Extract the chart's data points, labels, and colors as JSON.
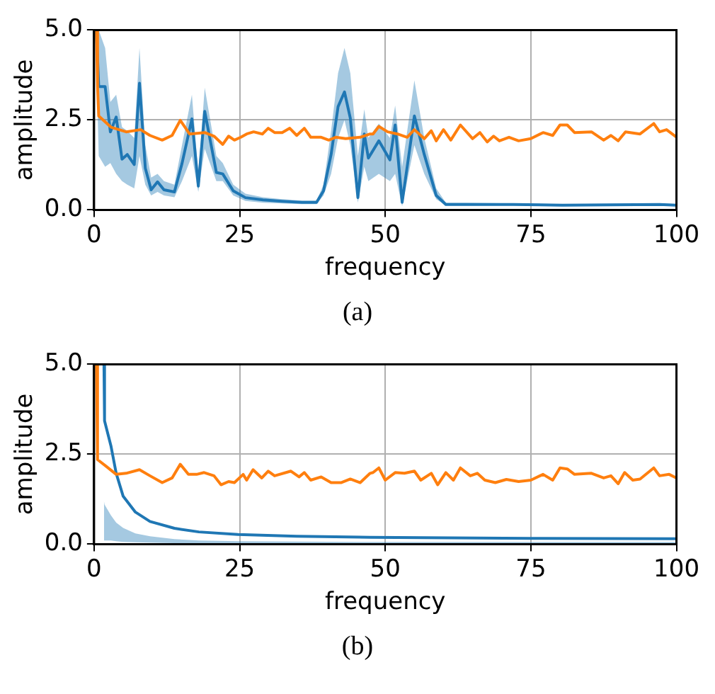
{
  "chart_data": [
    {
      "type": "line",
      "xlabel": "frequency",
      "ylabel": "amplitude",
      "annotations": [
        "(a)"
      ],
      "xlim": [
        0,
        100
      ],
      "ylim": [
        0,
        5
      ],
      "xticks": [
        0,
        25,
        50,
        75,
        100
      ],
      "yticks": [
        {
          "value": 0,
          "label": "0.0"
        },
        {
          "value": 2.5,
          "label": "2.5"
        },
        {
          "value": 5,
          "label": "5.0"
        }
      ],
      "grid": true,
      "legend": false,
      "marker": "none",
      "line_style": "solid",
      "series": [
        {
          "color": "#1f77b4",
          "x": [
            0.4,
            0.8,
            1.9,
            2.8,
            3.8,
            4.8,
            5.7,
            6.9,
            7.8,
            8.8,
            9.8,
            10.9,
            12,
            13.8,
            15.1,
            16.8,
            17.9,
            19,
            21,
            22.1,
            23.9,
            26,
            29,
            32.3,
            35.7,
            38.2,
            39.4,
            40.7,
            41.9,
            43,
            44,
            45.3,
            46.4,
            47.1,
            48.9,
            50.8,
            51.7,
            52.9,
            55,
            56.7,
            58.75,
            60.4,
            63.75,
            72,
            80.4,
            88.75,
            97.1,
            100
          ],
          "values": [
            5.0,
            3.43,
            3.43,
            2.17,
            2.58,
            1.41,
            1.54,
            1.26,
            3.52,
            1.16,
            0.56,
            0.78,
            0.56,
            0.5,
            1.29,
            2.53,
            0.66,
            2.74,
            1.04,
            1.0,
            0.53,
            0.34,
            0.28,
            0.24,
            0.21,
            0.21,
            0.53,
            1.54,
            2.87,
            3.28,
            2.55,
            0.34,
            2.11,
            1.44,
            1.92,
            1.39,
            2.36,
            0.21,
            2.61,
            1.54,
            0.4,
            0.15,
            0.15,
            0.15,
            0.13,
            0.14,
            0.15,
            0.13
          ],
          "lower": [
            4.0,
            1.5,
            1.2,
            1.3,
            1.0,
            0.8,
            0.7,
            0.6,
            1.5,
            0.7,
            0.4,
            0.5,
            0.4,
            0.35,
            0.8,
            1.5,
            0.5,
            1.7,
            0.8,
            0.8,
            0.4,
            0.25,
            0.2,
            0.18,
            0.16,
            0.16,
            0.4,
            1.0,
            2.0,
            2.5,
            1.8,
            0.2,
            1.2,
            0.8,
            1.0,
            0.8,
            1.0,
            0.1,
            1.8,
            1.0,
            0.3,
            0.12,
            0.12,
            0.12,
            0.1,
            0.11,
            0.12,
            0.1
          ],
          "upper": [
            5.0,
            5.0,
            4.5,
            3.0,
            3.2,
            2.3,
            2.2,
            2.0,
            4.5,
            1.8,
            0.9,
            1.0,
            0.8,
            0.7,
            1.8,
            3.2,
            1.0,
            3.4,
            1.5,
            1.3,
            0.7,
            0.45,
            0.35,
            0.3,
            0.26,
            0.26,
            0.7,
            2.2,
            3.8,
            4.5,
            3.8,
            1.5,
            2.8,
            2.0,
            2.4,
            2.0,
            2.9,
            1.2,
            3.6,
            2.0,
            0.6,
            0.2,
            0.2,
            0.18,
            0.16,
            0.17,
            0.18,
            0.16
          ]
        },
        {
          "color": "#ff7f0e",
          "x": [
            0.4,
            0.6,
            0.8,
            2.9,
            5.5,
            8,
            9.6,
            11.7,
            13.4,
            14.8,
            16.4,
            19,
            20.6,
            22.1,
            23.1,
            24.1,
            25.2,
            26.2,
            27.4,
            28.9,
            29.9,
            31,
            32.3,
            33.6,
            34.8,
            36.1,
            37.2,
            39,
            40.3,
            41.5,
            43.2,
            45.7,
            47.4,
            47.9,
            48.9,
            50.4,
            52.1,
            53.75,
            55,
            56.7,
            57.9,
            58.75,
            60,
            61.25,
            62.9,
            65,
            66.25,
            67.5,
            68.6,
            69.6,
            71.25,
            72.9,
            75,
            77.1,
            78.75,
            80,
            81.25,
            82.5,
            85.4,
            87.5,
            88.75,
            90,
            91.25,
            93.75,
            96.1,
            97.1,
            98.3,
            100
          ],
          "values": [
            5.0,
            3.43,
            2.61,
            2.3,
            2.17,
            2.23,
            2.07,
            1.94,
            2.07,
            2.49,
            2.11,
            2.15,
            2.05,
            1.82,
            2.05,
            1.94,
            2.02,
            2.11,
            2.17,
            2.11,
            2.27,
            2.15,
            2.15,
            2.27,
            2.07,
            2.27,
            2.02,
            2.02,
            1.94,
            2.02,
            1.98,
            2.02,
            2.11,
            2.11,
            2.32,
            2.17,
            2.11,
            2.02,
            2.23,
            1.98,
            2.2,
            1.92,
            2.23,
            1.94,
            2.36,
            1.98,
            2.15,
            1.89,
            2.05,
            1.92,
            2.02,
            1.92,
            1.98,
            2.15,
            2.07,
            2.36,
            2.36,
            2.15,
            2.17,
            1.94,
            2.07,
            1.92,
            2.17,
            2.11,
            2.4,
            2.17,
            2.23,
            2.02
          ]
        }
      ]
    },
    {
      "type": "line",
      "xlabel": "frequency",
      "ylabel": "amplitude",
      "annotations": [
        "(b)"
      ],
      "xlim": [
        0,
        100
      ],
      "ylim": [
        0,
        5
      ],
      "xticks": [
        0,
        25,
        50,
        75,
        100
      ],
      "yticks": [
        {
          "value": 0,
          "label": "0.0"
        },
        {
          "value": 2.5,
          "label": "2.5"
        },
        {
          "value": 5,
          "label": "5.0"
        }
      ],
      "grid": true,
      "legend": false,
      "marker": "none",
      "line_style": "solid",
      "series": [
        {
          "color": "#1f77b4",
          "x": [
            1.7,
            1.8,
            2.9,
            3.8,
            5.0,
            7.1,
            9.6,
            13.8,
            18,
            24.7,
            34.8,
            47.4,
            75,
            100
          ],
          "values": [
            5.0,
            3.43,
            2.73,
            1.97,
            1.33,
            0.89,
            0.63,
            0.44,
            0.34,
            0.27,
            0.22,
            0.19,
            0.16,
            0.15
          ],
          "lower": [
            0.1,
            0.1,
            0.1,
            0.08,
            0.06,
            0.05,
            0.04,
            0.03,
            0.03,
            0.02,
            0.02,
            0.02,
            0.02,
            0.02
          ],
          "upper": [
            1.2,
            1.1,
            0.8,
            0.6,
            0.45,
            0.3,
            0.22,
            0.14,
            0.1,
            0.08,
            0.07,
            0.06,
            0.06,
            0.06
          ]
        },
        {
          "color": "#ff7f0e",
          "x": [
            0.4,
            0.6,
            2.1,
            3.8,
            5.5,
            7.8,
            9.6,
            11.7,
            13.4,
            14.8,
            16.2,
            17.6,
            18.9,
            20.6,
            21.8,
            23.1,
            24.1,
            25.6,
            26.2,
            27.3,
            28.8,
            29.9,
            31,
            33.8,
            35.2,
            36.1,
            37.2,
            39,
            40.7,
            42.4,
            44,
            45.7,
            47.4,
            47.9,
            48.9,
            50,
            51.7,
            53.3,
            55,
            56.1,
            57.9,
            59,
            60.4,
            61.7,
            62.9,
            64.6,
            65.8,
            67.1,
            68.9,
            70.8,
            72.9,
            75,
            77.1,
            78.75,
            80,
            81.25,
            82.5,
            85.4,
            87.5,
            88.75,
            90,
            91.1,
            92.5,
            93.75,
            96.1,
            97.1,
            98.75,
            100
          ],
          "values": [
            5.0,
            2.35,
            2.16,
            1.94,
            1.97,
            2.07,
            1.9,
            1.71,
            1.84,
            2.22,
            1.94,
            1.94,
            1.99,
            1.9,
            1.65,
            1.74,
            1.71,
            1.94,
            1.78,
            2.07,
            1.84,
            2.03,
            1.9,
            2.03,
            1.87,
            1.99,
            1.78,
            1.87,
            1.71,
            1.71,
            1.81,
            1.71,
            1.97,
            1.99,
            2.12,
            1.78,
            1.99,
            1.97,
            2.03,
            1.78,
            1.97,
            1.65,
            1.99,
            1.78,
            2.12,
            1.9,
            1.97,
            1.78,
            1.71,
            1.8,
            1.74,
            1.78,
            1.94,
            1.78,
            2.12,
            2.09,
            1.94,
            1.97,
            1.84,
            1.9,
            1.68,
            1.99,
            1.78,
            1.81,
            2.12,
            1.9,
            1.94,
            1.84
          ]
        }
      ]
    }
  ]
}
